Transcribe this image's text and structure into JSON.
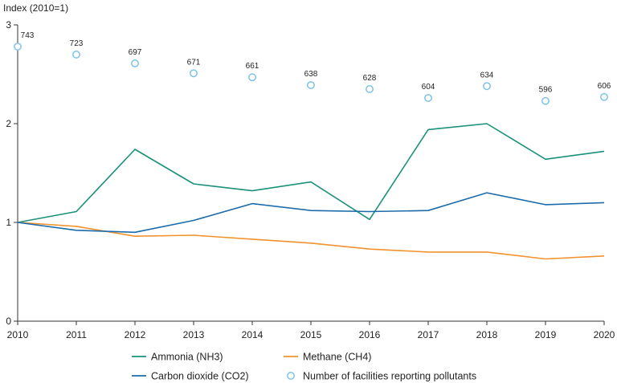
{
  "chart_data": {
    "type": "line",
    "ylabel": "Index (2010=1)",
    "xlabel": "",
    "x": [
      "2010",
      "2011",
      "2012",
      "2013",
      "2014",
      "2015",
      "2016",
      "2017",
      "2018",
      "2019",
      "2020"
    ],
    "ylim": [
      0,
      3
    ],
    "yticks": [
      "0",
      "1",
      "2",
      "3"
    ],
    "series": [
      {
        "name": "Ammonia (NH3)",
        "color": "#1a9179",
        "values": [
          1.0,
          1.11,
          1.74,
          1.39,
          1.32,
          1.41,
          1.03,
          1.94,
          2.0,
          1.64,
          1.72
        ]
      },
      {
        "name": "Methane (CH4)",
        "color": "#f2922e",
        "values": [
          1.0,
          0.96,
          0.86,
          0.87,
          0.83,
          0.79,
          0.73,
          0.7,
          0.7,
          0.63,
          0.66
        ]
      },
      {
        "name": "Carbon dioxide (CO2)",
        "color": "#1b6aaa",
        "values": [
          1.0,
          0.92,
          0.9,
          1.02,
          1.19,
          1.12,
          1.11,
          1.12,
          1.3,
          1.18,
          1.2
        ]
      }
    ],
    "facilities": {
      "name": "Number of facilities reporting pollutants",
      "color": "#7ec3ea",
      "counts": [
        743,
        723,
        697,
        671,
        661,
        638,
        628,
        604,
        634,
        596,
        606
      ],
      "index_positions": [
        2.78,
        2.7,
        2.61,
        2.51,
        2.47,
        2.39,
        2.35,
        2.26,
        2.38,
        2.23,
        2.27
      ]
    },
    "legend": [
      {
        "label": "Ammonia (NH3)",
        "kind": "line",
        "color": "#1a9179"
      },
      {
        "label": "Methane (CH4)",
        "kind": "line",
        "color": "#f2922e"
      },
      {
        "label": "Carbon dioxide (CO2)",
        "kind": "line",
        "color": "#1b6aaa"
      },
      {
        "label": "Number of facilities reporting pollutants",
        "kind": "circle",
        "color": "#7ec3ea"
      }
    ],
    "legend_position": "bottom",
    "grid": false
  }
}
